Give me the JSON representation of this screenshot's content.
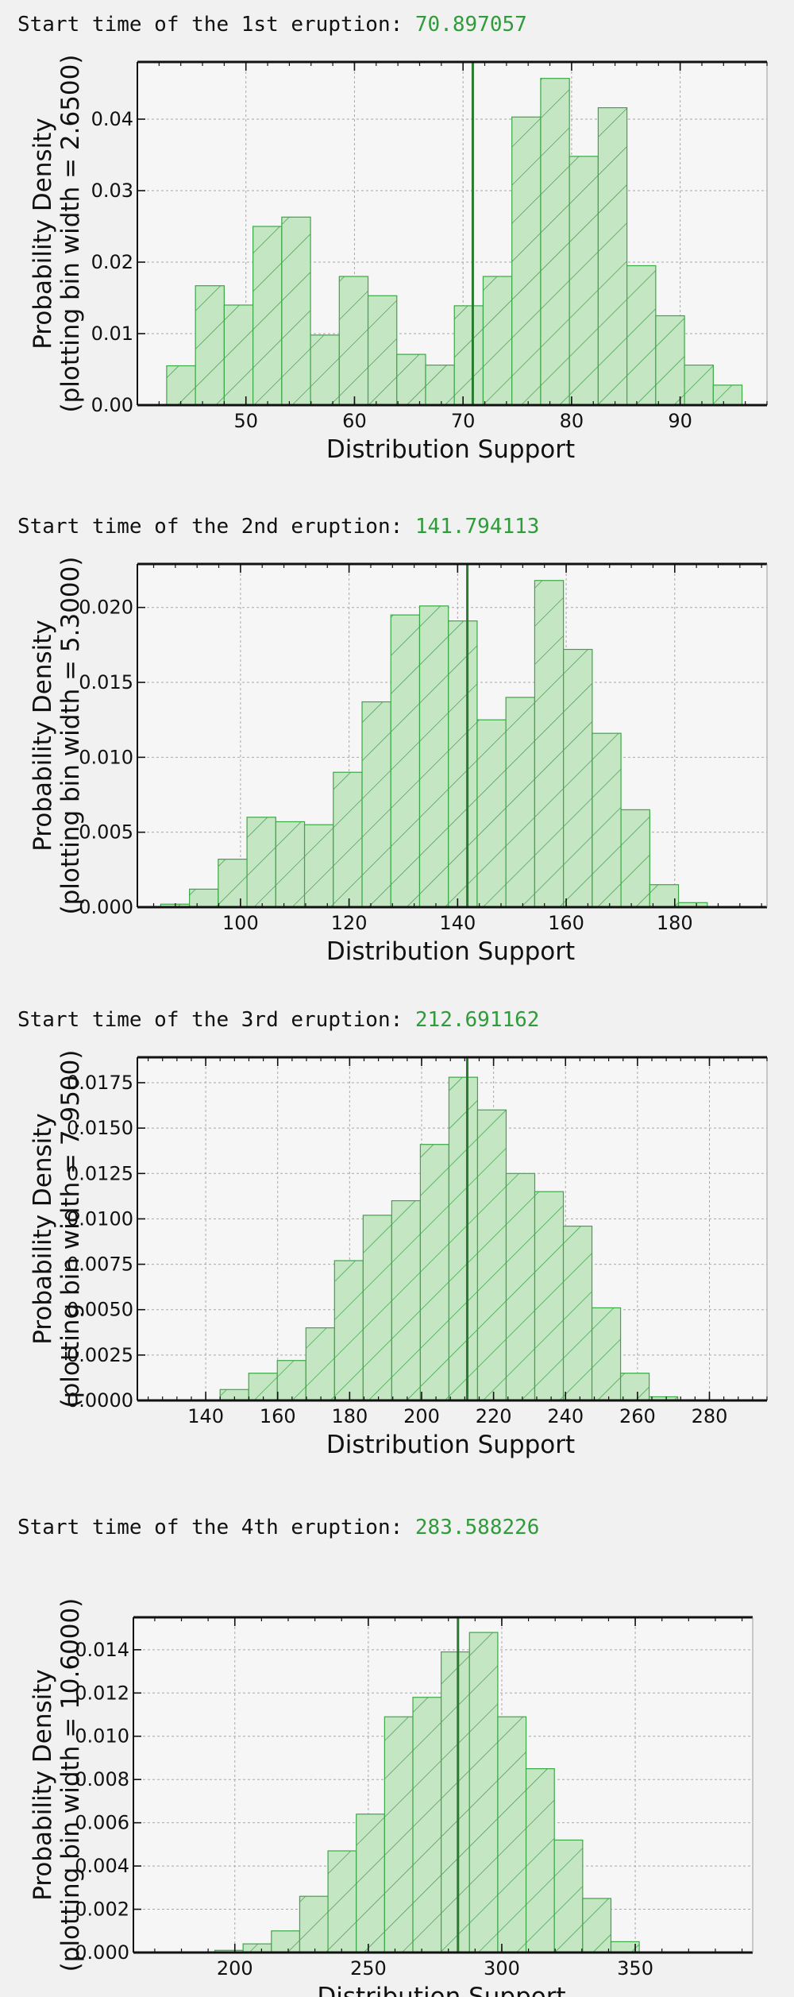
{
  "colors": {
    "bar_fill": "#c4e6c3",
    "bar_edge": "#3aa845",
    "hatch": "#2f9b3a",
    "marker_line": "#2a7a30",
    "plot_bg": "#f6f6f6",
    "title_value": "#2f9b3a"
  },
  "panels": [
    {
      "title_prefix": "Start time of the 1st eruption: ",
      "title_value": "70.897057"
    },
    {
      "title_prefix": "Start time of the 2nd eruption: ",
      "title_value": "141.794113"
    },
    {
      "title_prefix": "Start time of the 3rd eruption: ",
      "title_value": "212.691162"
    },
    {
      "title_prefix": "Start time of the 4th eruption: ",
      "title_value": "283.588226"
    }
  ],
  "chart_data": [
    {
      "type": "bar",
      "xlabel": "Distribution Support",
      "ylabel_line1": "Probability Density",
      "ylabel_line2": "(plotting bin width = 2.6500)",
      "xlim": [
        40.0,
        98.0
      ],
      "ylim": [
        0,
        0.048
      ],
      "xticks": [
        50,
        60,
        70,
        80,
        90
      ],
      "xtick_labels": [
        "50",
        "60",
        "70",
        "80",
        "90"
      ],
      "yticks": [
        0,
        0.01,
        0.02,
        0.03,
        0.04
      ],
      "ytick_labels": [
        "0.00",
        "0.01",
        "0.02",
        "0.03",
        "0.04"
      ],
      "bin_start": 42.7,
      "bin_width": 2.65,
      "values": [
        0.0055,
        0.0167,
        0.014,
        0.025,
        0.0263,
        0.0098,
        0.018,
        0.0153,
        0.0071,
        0.0056,
        0.0139,
        0.018,
        0.0403,
        0.0457,
        0.0348,
        0.0416,
        0.0195,
        0.0125,
        0.0056,
        0.0028
      ],
      "marker_x": 70.897057
    },
    {
      "type": "bar",
      "xlabel": "Distribution Support",
      "ylabel_line1": "Probability Density",
      "ylabel_line2": "(plotting bin width = 5.3000)",
      "xlim": [
        81.0,
        197.0
      ],
      "ylim": [
        0,
        0.0229
      ],
      "xticks": [
        100,
        120,
        140,
        160,
        180
      ],
      "xtick_labels": [
        "100",
        "120",
        "140",
        "160",
        "180"
      ],
      "yticks": [
        0,
        0.005,
        0.01,
        0.015,
        0.02
      ],
      "ytick_labels": [
        "0.000",
        "0.005",
        "0.010",
        "0.015",
        "0.020"
      ],
      "bin_start": 85.3,
      "bin_width": 5.3,
      "values": [
        0.0002,
        0.0012,
        0.0032,
        0.006,
        0.0057,
        0.0055,
        0.009,
        0.0137,
        0.0195,
        0.0201,
        0.0191,
        0.0125,
        0.014,
        0.0218,
        0.0172,
        0.0116,
        0.0065,
        0.0015,
        0.0003
      ],
      "marker_x": 141.794113
    },
    {
      "type": "bar",
      "xlabel": "Distribution Support",
      "ylabel_line1": "Probability Density",
      "ylabel_line2": "(plotting bin width = 7.9500)",
      "xlim": [
        121.0,
        296.0
      ],
      "ylim": [
        0,
        0.0189
      ],
      "xticks": [
        140,
        160,
        180,
        200,
        220,
        240,
        260,
        280
      ],
      "xtick_labels": [
        "140",
        "160",
        "180",
        "200",
        "220",
        "240",
        "260",
        "280"
      ],
      "yticks": [
        0,
        0.0025,
        0.005,
        0.0075,
        0.01,
        0.0125,
        0.015,
        0.0175
      ],
      "ytick_labels": [
        "0.0000",
        "0.0025",
        "0.0050",
        "0.0075",
        "0.0100",
        "0.0125",
        "0.0150",
        "0.0175"
      ],
      "bin_start": 144.0,
      "bin_width": 7.95,
      "values": [
        0.0006,
        0.0015,
        0.0022,
        0.004,
        0.0077,
        0.0102,
        0.011,
        0.0141,
        0.0178,
        0.016,
        0.0125,
        0.0115,
        0.0096,
        0.0051,
        0.0015,
        0.0002
      ],
      "marker_x": 212.691162
    },
    {
      "type": "bar",
      "xlabel": "Distribution Support",
      "ylabel_line1": "Probability Density",
      "ylabel_line2": "(plotting bin width = 10.6000)",
      "xlim": [
        162.0,
        394.0
      ],
      "ylim": [
        0,
        0.0155
      ],
      "xticks": [
        200,
        250,
        300,
        350
      ],
      "xtick_labels": [
        "200",
        "250",
        "300",
        "350"
      ],
      "yticks": [
        0,
        0.002,
        0.004,
        0.006,
        0.008,
        0.01,
        0.012,
        0.014
      ],
      "ytick_labels": [
        "0.000",
        "0.002",
        "0.004",
        "0.006",
        "0.008",
        "0.010",
        "0.012",
        "0.014"
      ],
      "bin_start": 192.5,
      "bin_width": 10.6,
      "values": [
        0.0001,
        0.0004,
        0.001,
        0.0026,
        0.0047,
        0.0064,
        0.0109,
        0.0118,
        0.0139,
        0.0148,
        0.0109,
        0.0085,
        0.0052,
        0.0025,
        0.0005
      ],
      "marker_x": 283.588226
    }
  ]
}
